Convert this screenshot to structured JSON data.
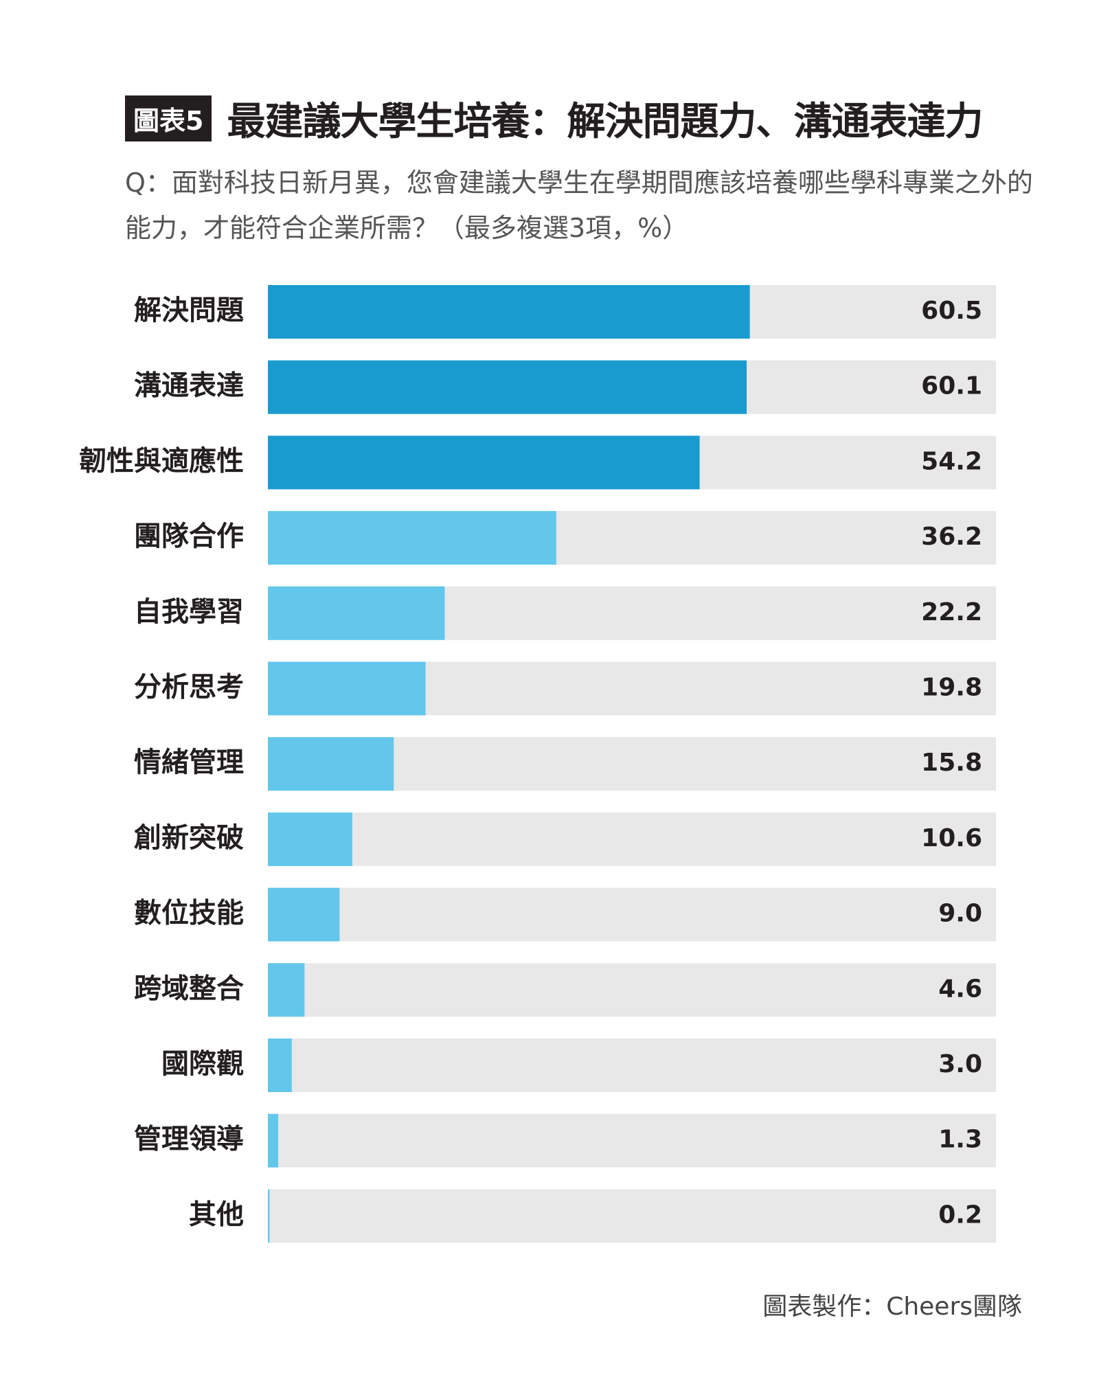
{
  "chart_data": {
    "type": "hbar",
    "badge": "圖表5",
    "title": "最建議大學生培養：解決問題力、溝通表達力",
    "subtitle": "Q：面對科技日新月異，您會建議大學生在學期間應該培養哪些學科專業之外的能力，才能符合企業所需？（最多複選3項，%）",
    "categories": [
      "解決問題",
      "溝通表達",
      "韌性與適應性",
      "團隊合作",
      "自我學習",
      "分析思考",
      "情緒管理",
      "創新突破",
      "數位技能",
      "跨域整合",
      "國際觀",
      "管理領導",
      "其他"
    ],
    "values": [
      60.5,
      60.1,
      54.2,
      36.2,
      22.2,
      19.8,
      15.8,
      10.6,
      9.0,
      4.6,
      3.0,
      1.3,
      0.2
    ],
    "value_labels": [
      "60.5",
      "60.1",
      "54.2",
      "36.2",
      "22.2",
      "19.8",
      "15.8",
      "10.6",
      "9.0",
      "4.6",
      "3.0",
      "1.3",
      "0.2"
    ],
    "colors": [
      "#1a9bd0",
      "#1a9bd0",
      "#1a9bd0",
      "#63c7ec",
      "#63c7ec",
      "#63c7ec",
      "#63c7ec",
      "#63c7ec",
      "#63c7ec",
      "#63c7ec",
      "#63c7ec",
      "#63c7ec",
      "#63c7ec"
    ],
    "track_color": "#e8e8e8",
    "xlim": [
      0,
      91.4
    ],
    "source": "圖表製作：Cheers團隊"
  }
}
